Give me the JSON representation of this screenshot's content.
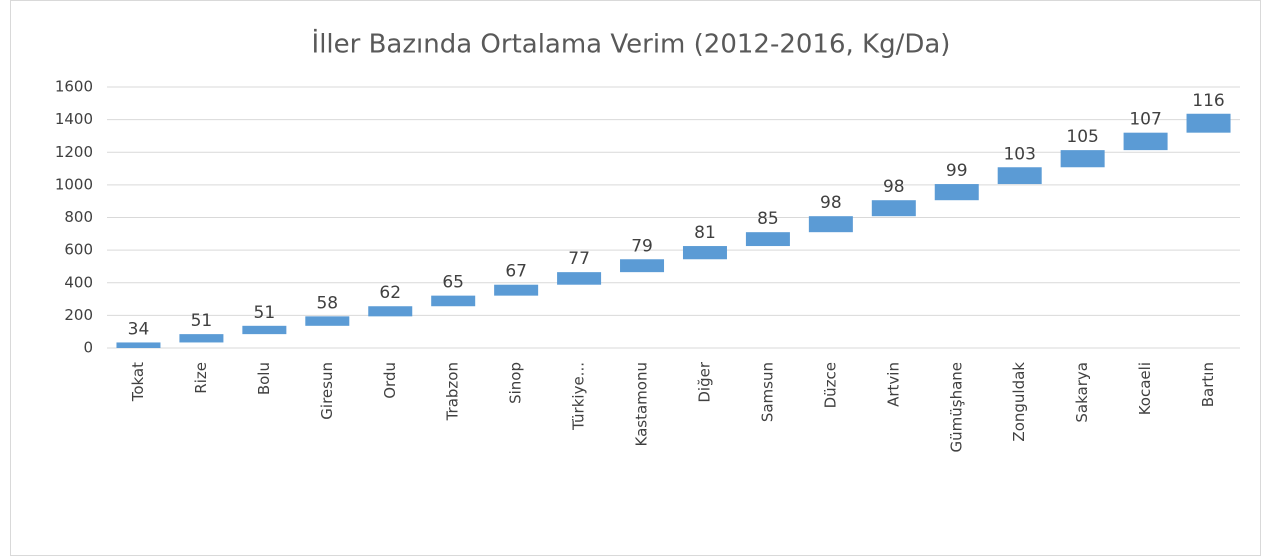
{
  "chart_data": {
    "type": "waterfall",
    "title": "İller Bazında Ortalama Verim (2012-2016, Kg/Da)",
    "categories": [
      "Tokat",
      "Rize",
      "Bolu",
      "Giresun",
      "Ordu",
      "Trabzon",
      "Sinop",
      "Türkiye...",
      "Kastamonu",
      "Diğer",
      "Samsun",
      "Düzce",
      "Artvin",
      "Gümüşhane",
      "Zonguldak",
      "Sakarya",
      "Kocaeli",
      "Bartın"
    ],
    "values": [
      34,
      51,
      51,
      58,
      62,
      65,
      67,
      77,
      79,
      81,
      85,
      98,
      98,
      99,
      103,
      105,
      107,
      116
    ],
    "color": "#5b9bd5",
    "ylim": [
      0,
      1600
    ],
    "yticks": [
      0,
      200,
      400,
      600,
      800,
      1000,
      1200,
      1400,
      1600
    ],
    "grid": true
  }
}
